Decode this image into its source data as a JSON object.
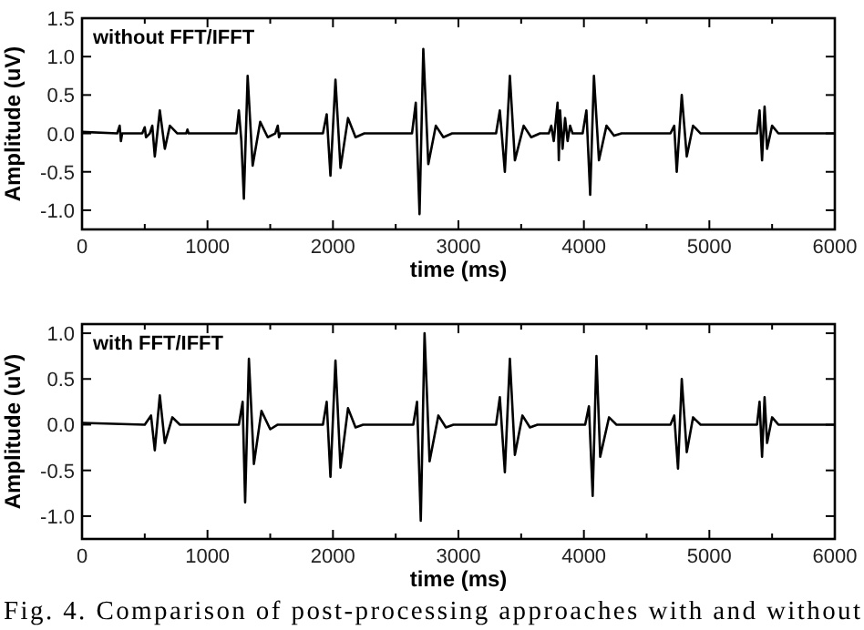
{
  "chart_data": [
    {
      "type": "line",
      "title": "without FFT/IFFT",
      "xlabel": "time (ms)",
      "ylabel": "Amplitude (uV)",
      "xlim": [
        0,
        6000
      ],
      "ylim": [
        -1.25,
        1.5
      ],
      "xticks": [
        0,
        {
          "value": 500,
          "label": null
        },
        1000,
        {
          "value": 1500,
          "label": null
        },
        2000,
        {
          "value": 2500,
          "label": null
        },
        3000,
        {
          "value": 3500,
          "label": null
        },
        4000,
        {
          "value": 4500,
          "label": null
        },
        5000,
        {
          "value": 5500,
          "label": null
        },
        6000
      ],
      "yticks": [
        {
          "value": -1,
          "label": "-1.0"
        },
        {
          "value": -0.5,
          "label": "-0.5"
        },
        {
          "value": 0,
          "label": "0.0"
        },
        {
          "value": 0.5,
          "label": "0.5"
        },
        {
          "value": 1,
          "label": "1.0"
        },
        {
          "value": 1.5,
          "label": "1.5"
        }
      ],
      "grid": false,
      "marker": "none",
      "line_style": "solid",
      "series": [
        {
          "color": "#000000",
          "x": [
            0,
            280,
            300,
            310,
            320,
            480,
            500,
            510,
            540,
            560,
            580,
            620,
            660,
            700,
            760,
            830,
            840,
            850,
            1230,
            1250,
            1270,
            1290,
            1320,
            1360,
            1420,
            1480,
            1540,
            1560,
            1570,
            1580,
            1920,
            1950,
            1980,
            2020,
            2060,
            2120,
            2180,
            2250,
            2630,
            2660,
            2690,
            2720,
            2760,
            2820,
            2880,
            2950,
            3300,
            3330,
            3370,
            3410,
            3450,
            3520,
            3580,
            3650,
            3720,
            3740,
            3760,
            3790,
            3800,
            3810,
            3830,
            3850,
            3870,
            3890,
            3910,
            3990,
            4020,
            4050,
            4080,
            4120,
            4180,
            4240,
            4300,
            4690,
            4720,
            4740,
            4780,
            4820,
            4870,
            4930,
            5380,
            5400,
            5420,
            5440,
            5460,
            5500,
            5550,
            6000
          ],
          "values": [
            0.02,
            0,
            0.1,
            -0.1,
            0,
            0,
            0.08,
            -0.05,
            0,
            0.1,
            -0.3,
            0.3,
            -0.2,
            0.1,
            0,
            0,
            0.05,
            0,
            0,
            0.3,
            -0.1,
            -0.85,
            0.75,
            -0.42,
            0.15,
            -0.05,
            0,
            0.1,
            -0.05,
            0,
            0,
            0.25,
            -0.55,
            0.7,
            -0.45,
            0.2,
            -0.05,
            0,
            0,
            0.4,
            -1.05,
            1.1,
            -0.4,
            0.1,
            -0.05,
            0,
            0,
            0.3,
            -0.5,
            0.75,
            -0.35,
            0.1,
            -0.05,
            0,
            0,
            0.1,
            -0.1,
            0.4,
            -0.35,
            0.3,
            -0.2,
            0.2,
            -0.1,
            0.1,
            0,
            0,
            0.3,
            -0.8,
            0.75,
            -0.35,
            0.1,
            -0.03,
            0,
            0,
            0.1,
            -0.5,
            0.5,
            -0.3,
            0.1,
            0,
            0,
            0.3,
            -0.35,
            0.35,
            -0.2,
            0.1,
            0,
            0
          ]
        }
      ]
    },
    {
      "type": "line",
      "title": "with FFT/IFFT",
      "xlabel": "time (ms)",
      "ylabel": "Amplitude (uV)",
      "xlim": [
        0,
        6000
      ],
      "ylim": [
        -1.25,
        1.1
      ],
      "xticks": [
        0,
        {
          "value": 500,
          "label": null
        },
        1000,
        {
          "value": 1500,
          "label": null
        },
        2000,
        {
          "value": 2500,
          "label": null
        },
        3000,
        {
          "value": 3500,
          "label": null
        },
        4000,
        {
          "value": 4500,
          "label": null
        },
        5000,
        {
          "value": 5500,
          "label": null
        },
        6000
      ],
      "yticks": [
        {
          "value": -1,
          "label": "-1.0"
        },
        {
          "value": -0.5,
          "label": "-0.5"
        },
        {
          "value": 0,
          "label": "0.0"
        },
        {
          "value": 0.5,
          "label": "0.5"
        },
        {
          "value": 1,
          "label": "1.0"
        }
      ],
      "grid": false,
      "marker": "none",
      "line_style": "solid",
      "annotations": [
        "Fig. 4. Comparison of post-processing approaches with and without"
      ],
      "series": [
        {
          "color": "#000000",
          "x": [
            0,
            500,
            550,
            580,
            620,
            660,
            720,
            780,
            1250,
            1280,
            1300,
            1330,
            1370,
            1430,
            1500,
            1560,
            1920,
            1950,
            1980,
            2020,
            2060,
            2120,
            2180,
            2240,
            2640,
            2670,
            2700,
            2730,
            2770,
            2840,
            2900,
            2960,
            3300,
            3330,
            3370,
            3410,
            3450,
            3510,
            3570,
            3630,
            4010,
            4040,
            4070,
            4100,
            4130,
            4200,
            4260,
            4690,
            4720,
            4750,
            4780,
            4820,
            4870,
            4930,
            5380,
            5400,
            5420,
            5440,
            5460,
            5500,
            5550,
            6000
          ],
          "values": [
            0.02,
            0,
            0.1,
            -0.28,
            0.32,
            -0.2,
            0.08,
            0,
            0,
            0.25,
            -0.85,
            0.72,
            -0.43,
            0.15,
            -0.05,
            0,
            0,
            0.25,
            -0.57,
            0.7,
            -0.47,
            0.18,
            -0.03,
            0,
            0,
            0.25,
            -1.05,
            1,
            -0.4,
            0.1,
            -0.03,
            0,
            0,
            0.3,
            -0.52,
            0.72,
            -0.33,
            0.1,
            -0.03,
            0,
            0,
            0.2,
            -0.78,
            0.75,
            -0.35,
            0.08,
            0,
            0,
            0.1,
            -0.48,
            0.5,
            -0.3,
            0.08,
            0,
            0,
            0.25,
            -0.35,
            0.3,
            -0.2,
            0.08,
            0,
            0
          ]
        }
      ]
    }
  ]
}
